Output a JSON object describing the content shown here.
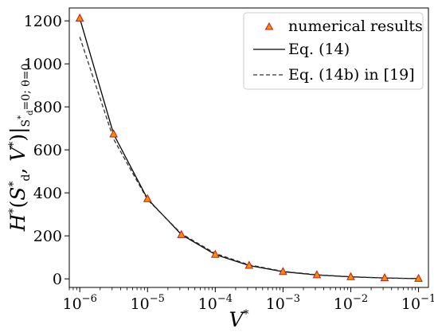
{
  "chart_data": {
    "type": "line",
    "title": "",
    "x_scale": "log",
    "xlabel": "V*",
    "ylabel": "H*(S*_d, V*)|S*_d=0; θ=0",
    "ylabel_parts": {
      "main": "H",
      "sup1": "*",
      "open": "(",
      "s": "S",
      "s_sup": "*",
      "s_sub": "d",
      "comma": ", ",
      "v": "V",
      "v_sup": "*",
      "close": ")",
      "bar": "|",
      "cond": "S",
      "cond_sup": "*",
      "cond_sub": "d",
      "cond_rest": "=0; θ=0"
    },
    "xlabel_parts": {
      "main": "V",
      "sup": "*"
    },
    "xlim": [
      7e-07,
      0.14
    ],
    "ylim": [
      -40,
      1260
    ],
    "x_ticks": [
      {
        "value": 1e-06,
        "base": "10",
        "exp": "−6"
      },
      {
        "value": 1e-05,
        "base": "10",
        "exp": "−5"
      },
      {
        "value": 0.0001,
        "base": "10",
        "exp": "−4"
      },
      {
        "value": 0.001,
        "base": "10",
        "exp": "−3"
      },
      {
        "value": 0.01,
        "base": "10",
        "exp": "−2"
      },
      {
        "value": 0.1,
        "base": "10",
        "exp": "−1"
      }
    ],
    "y_ticks": [
      0,
      200,
      400,
      600,
      800,
      1000,
      1200
    ],
    "y_tick_labels": [
      "0",
      "200",
      "400",
      "600",
      "800",
      "1000",
      "1200"
    ],
    "grid": false,
    "legend_position": "top-right",
    "series": [
      {
        "name": "numerical results",
        "style": "markers",
        "marker": "triangle",
        "color": "#ff8c00",
        "edge_color": "#b22222",
        "x": [
          1e-06,
          3.16e-06,
          1e-05,
          3.16e-05,
          0.0001,
          0.000316,
          0.001,
          0.00316,
          0.01,
          0.0316,
          0.1
        ],
        "y": [
          1212,
          673,
          372,
          205,
          113,
          62,
          33,
          18,
          9,
          4,
          1
        ]
      },
      {
        "name": "Eq. (14)",
        "style": "solid",
        "color": "#000000",
        "x": [
          1e-06,
          3.16e-06,
          1e-05,
          3.16e-05,
          0.0001,
          0.000316,
          0.001,
          0.00316,
          0.01,
          0.0316,
          0.1
        ],
        "y": [
          1212,
          673,
          372,
          206,
          113,
          62,
          33,
          18,
          9,
          4,
          1
        ]
      },
      {
        "name": "Eq. (14b) in [19]",
        "style": "dashed",
        "color": "#333333",
        "x": [
          1e-06,
          3.16e-06,
          1e-05,
          3.16e-05,
          0.0001,
          0.000316,
          0.001,
          0.00316,
          0.01,
          0.0316,
          0.1
        ],
        "y": [
          1125,
          650,
          368,
          210,
          118,
          65,
          35,
          19,
          10,
          4,
          1
        ]
      }
    ]
  }
}
